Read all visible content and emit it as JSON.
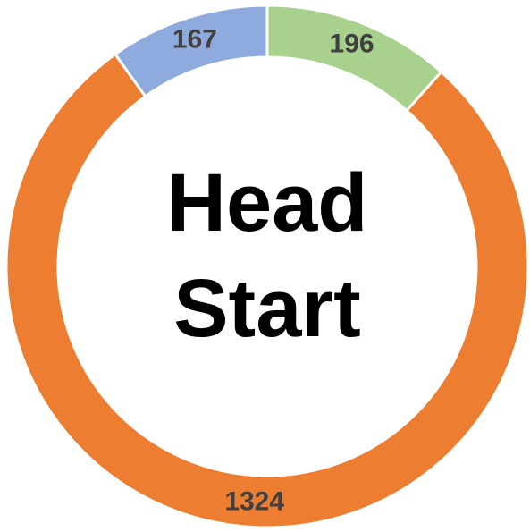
{
  "chart_data": {
    "type": "donut",
    "title": "Head Start",
    "values": [
      196,
      1324,
      167
    ],
    "colors": [
      "#a9d18e",
      "#ed7d31",
      "#8faadc"
    ]
  }
}
